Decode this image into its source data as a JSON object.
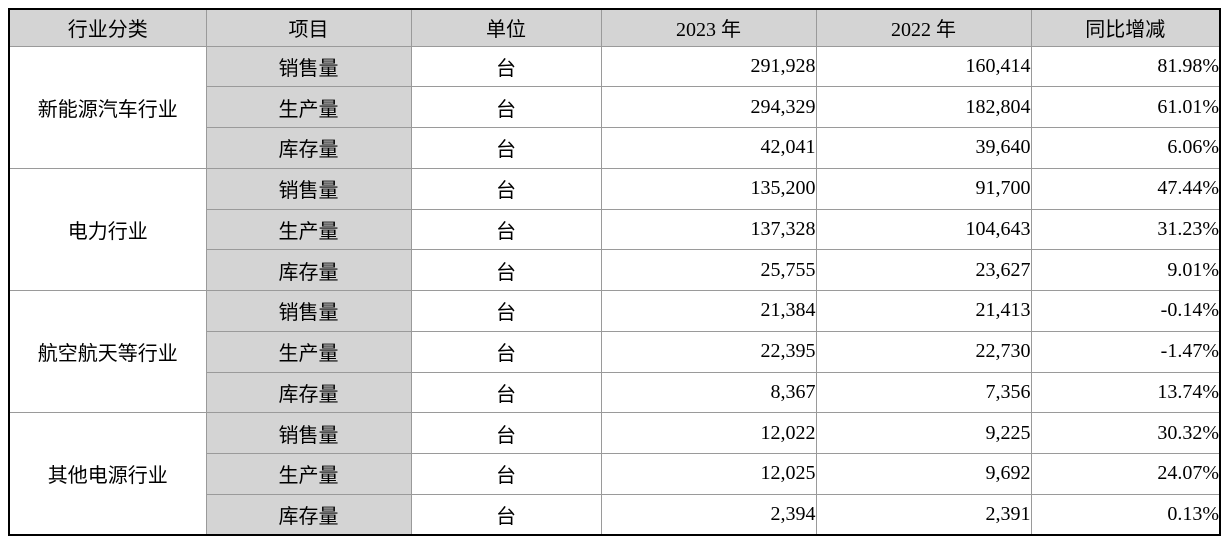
{
  "colors": {
    "header_bg": "#d4d4d4",
    "item_col_bg": "#d4d4d4",
    "grid_line": "#9a9a9a",
    "outer_border": "#000000",
    "text": "#000000"
  },
  "table": {
    "headers": [
      "行业分类",
      "项目",
      "单位",
      "2023 年",
      "2022 年",
      "同比增减"
    ],
    "groups": [
      {
        "industry": "新能源汽车行业",
        "rows": [
          {
            "item": "销售量",
            "unit": "台",
            "y2023": "291,928",
            "y2022": "160,414",
            "yoy": "81.98%"
          },
          {
            "item": "生产量",
            "unit": "台",
            "y2023": "294,329",
            "y2022": "182,804",
            "yoy": "61.01%"
          },
          {
            "item": "库存量",
            "unit": "台",
            "y2023": "42,041",
            "y2022": "39,640",
            "yoy": "6.06%"
          }
        ]
      },
      {
        "industry": "电力行业",
        "rows": [
          {
            "item": "销售量",
            "unit": "台",
            "y2023": "135,200",
            "y2022": "91,700",
            "yoy": "47.44%"
          },
          {
            "item": "生产量",
            "unit": "台",
            "y2023": "137,328",
            "y2022": "104,643",
            "yoy": "31.23%"
          },
          {
            "item": "库存量",
            "unit": "台",
            "y2023": "25,755",
            "y2022": "23,627",
            "yoy": "9.01%"
          }
        ]
      },
      {
        "industry": "航空航天等行业",
        "rows": [
          {
            "item": "销售量",
            "unit": "台",
            "y2023": "21,384",
            "y2022": "21,413",
            "yoy": "-0.14%"
          },
          {
            "item": "生产量",
            "unit": "台",
            "y2023": "22,395",
            "y2022": "22,730",
            "yoy": "-1.47%"
          },
          {
            "item": "库存量",
            "unit": "台",
            "y2023": "8,367",
            "y2022": "7,356",
            "yoy": "13.74%"
          }
        ]
      },
      {
        "industry": "其他电源行业",
        "rows": [
          {
            "item": "销售量",
            "unit": "台",
            "y2023": "12,022",
            "y2022": "9,225",
            "yoy": "30.32%"
          },
          {
            "item": "生产量",
            "unit": "台",
            "y2023": "12,025",
            "y2022": "9,692",
            "yoy": "24.07%"
          },
          {
            "item": "库存量",
            "unit": "台",
            "y2023": "2,394",
            "y2022": "2,391",
            "yoy": "0.13%"
          }
        ]
      }
    ]
  }
}
